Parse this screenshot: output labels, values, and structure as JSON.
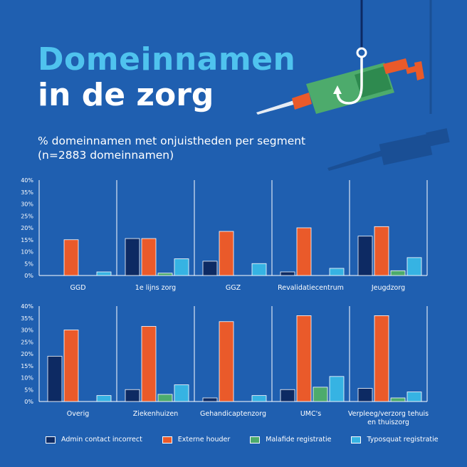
{
  "header": {
    "title_line1": "Domeinnamen",
    "title_line2": "in de zorg",
    "subtitle_line1": "% domeinnamen met onjuistheden per segment",
    "subtitle_line2": "(n=2883 domeinnamen)"
  },
  "colors": {
    "background": "#1f5fb0",
    "title_accent": "#4fc3ee"
  },
  "chart_data": {
    "type": "bar",
    "ylim": [
      0,
      40
    ],
    "yticks": [
      "40%",
      "35%",
      "30%",
      "25%",
      "20%",
      "15%",
      "10%",
      "5%",
      "0%"
    ],
    "series": [
      {
        "name": "Admin contact incorrect",
        "color": "#0d2a63"
      },
      {
        "name": "Externe houder",
        "color": "#ea5a2a"
      },
      {
        "name": "Malafide registratie",
        "color": "#4dab6c"
      },
      {
        "name": "Typosquat registratie",
        "color": "#36b3e3"
      }
    ],
    "rows": [
      {
        "panels": [
          {
            "label": [
              "GGD"
            ],
            "values": [
              0,
              15,
              0,
              1.5
            ]
          },
          {
            "label": [
              "1e lijns zorg"
            ],
            "values": [
              15.5,
              15.5,
              1,
              7
            ]
          },
          {
            "label": [
              "GGZ"
            ],
            "values": [
              6,
              18.5,
              0,
              5
            ]
          },
          {
            "label": [
              "Revalidatiecentrum"
            ],
            "values": [
              1.5,
              20,
              0,
              3
            ]
          },
          {
            "label": [
              "Jeugdzorg"
            ],
            "values": [
              16.5,
              20.5,
              2,
              7.5
            ]
          }
        ]
      },
      {
        "panels": [
          {
            "label": [
              "Overig"
            ],
            "values": [
              19,
              30,
              0,
              2.5
            ]
          },
          {
            "label": [
              "Ziekenhuizen"
            ],
            "values": [
              5,
              31.5,
              3,
              7
            ]
          },
          {
            "label": [
              "Gehandicaptenzorg"
            ],
            "values": [
              1.5,
              33.5,
              0,
              2.5
            ]
          },
          {
            "label": [
              "UMC's"
            ],
            "values": [
              5,
              36,
              6,
              10.5
            ]
          },
          {
            "label": [
              "Verpleeg/verzorg tehuis",
              "en thuiszorg"
            ],
            "values": [
              5.5,
              36,
              1.5,
              4
            ]
          }
        ]
      }
    ]
  }
}
